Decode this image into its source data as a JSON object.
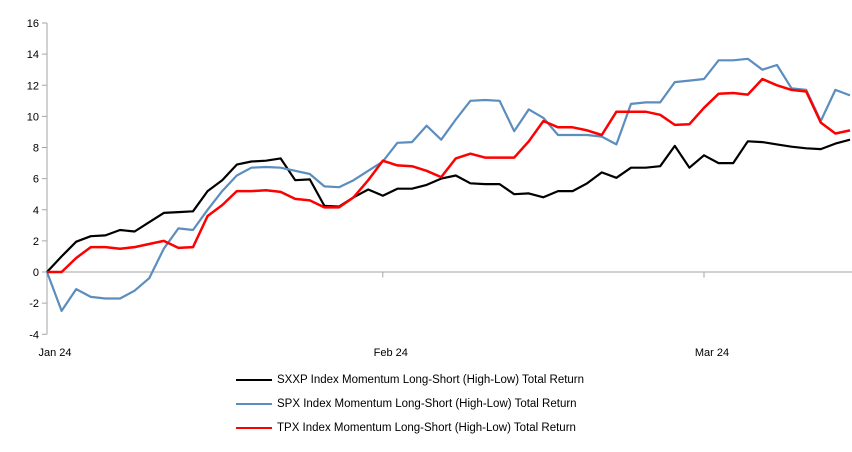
{
  "chart_data": {
    "type": "line",
    "title": "",
    "xlabel": "",
    "ylabel": "",
    "ylim": [
      -4,
      16
    ],
    "y_ticks": [
      16,
      14,
      12,
      10,
      8,
      6,
      4,
      2,
      0,
      -2,
      -4
    ],
    "x_tick_labels": [
      "Jan 24",
      "Feb 24",
      "Mar 24"
    ],
    "x_tick_indices": [
      0,
      23,
      45
    ],
    "grid": "zero-line-only",
    "legend_position": "bottom-center",
    "axis_color": "#A6A6A6",
    "series": [
      {
        "name": "SXXP Index Momentum Long-Short (High-Low) Total Return",
        "color": "#000000",
        "values": [
          0,
          1.0,
          1.95,
          2.3,
          2.35,
          2.7,
          2.6,
          3.2,
          3.8,
          3.85,
          3.9,
          5.2,
          5.9,
          6.9,
          7.1,
          7.15,
          7.3,
          5.9,
          5.95,
          4.25,
          4.2,
          4.8,
          5.3,
          4.9,
          5.35,
          5.35,
          5.6,
          6.0,
          6.2,
          5.7,
          5.65,
          5.65,
          5.0,
          5.05,
          4.8,
          5.2,
          5.2,
          5.7,
          6.4,
          6.05,
          6.7,
          6.7,
          6.8,
          8.1,
          6.7,
          7.5,
          7.0,
          7.0,
          8.4,
          8.35,
          8.2,
          8.05,
          7.95,
          7.9,
          8.25,
          8.5
        ]
      },
      {
        "name": "SPX Index Momentum Long-Short (High-Low) Total Return",
        "color": "#5B8DBE",
        "values": [
          0,
          -2.5,
          -1.1,
          -1.6,
          -1.7,
          -1.7,
          -1.2,
          -0.4,
          1.5,
          2.8,
          2.7,
          4.0,
          5.2,
          6.2,
          6.7,
          6.75,
          6.7,
          6.5,
          6.3,
          5.5,
          5.45,
          5.9,
          6.5,
          7.1,
          8.3,
          8.35,
          9.4,
          8.5,
          9.8,
          11.0,
          11.05,
          11.0,
          9.05,
          10.45,
          9.9,
          8.8,
          8.8,
          8.8,
          8.7,
          8.2,
          10.8,
          10.9,
          10.9,
          12.2,
          12.3,
          12.4,
          13.6,
          13.6,
          13.7,
          13.0,
          13.3,
          11.8,
          11.7,
          9.7,
          11.7,
          11.35
        ]
      },
      {
        "name": "TPX Index Momentum Long-Short (High-Low) Total Return",
        "color": "#FE0000",
        "values": [
          0,
          0,
          0.9,
          1.6,
          1.6,
          1.5,
          1.6,
          1.8,
          2.0,
          1.55,
          1.6,
          3.6,
          4.3,
          5.2,
          5.2,
          5.25,
          5.15,
          4.7,
          4.6,
          4.15,
          4.15,
          4.8,
          5.9,
          7.15,
          6.85,
          6.8,
          6.5,
          6.1,
          7.3,
          7.6,
          7.35,
          7.35,
          7.35,
          8.4,
          9.7,
          9.3,
          9.3,
          9.1,
          8.8,
          10.3,
          10.3,
          10.3,
          10.1,
          9.45,
          9.5,
          10.55,
          11.45,
          11.5,
          11.4,
          12.4,
          12.0,
          11.7,
          11.6,
          9.6,
          8.9,
          9.1
        ]
      }
    ]
  }
}
